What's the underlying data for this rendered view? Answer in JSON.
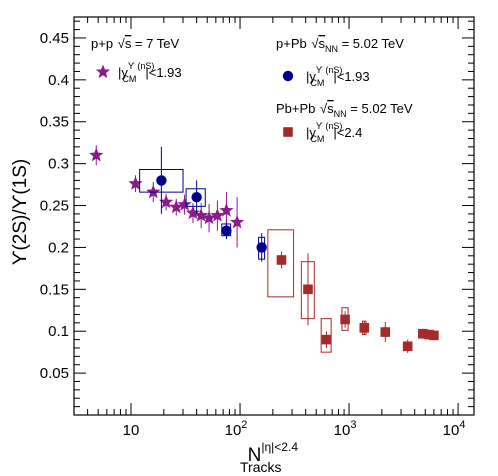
{
  "chart_data": {
    "type": "scatter",
    "x_scale": "log",
    "xlim": [
      3,
      14000
    ],
    "ylim": [
      0,
      0.475
    ],
    "grid": false,
    "legend_placement": "top",
    "x_ticks": [
      {
        "v": 10,
        "base": "10",
        "exp": ""
      },
      {
        "v": 100,
        "base": "10",
        "exp": "2"
      },
      {
        "v": 1000,
        "base": "10",
        "exp": "3"
      },
      {
        "v": 10000,
        "base": "10",
        "exp": "4"
      }
    ],
    "y_ticks": [
      "0.05",
      "0.1",
      "0.15",
      "0.2",
      "0.25",
      "0.3",
      "0.35",
      "0.4",
      "0.45"
    ],
    "xlabel": {
      "main": "N",
      "sup": "|η|<2.4",
      "sub": "Tracks"
    },
    "ylabel": "ϒ(2S)/ϒ(1S)",
    "series": [
      {
        "name": "|y^ϒ(nS)_CM|<1.93",
        "system": "p+p √s = 7 TeV",
        "marker": "star",
        "color": "#8b1a8b",
        "points": [
          {
            "x": 4.8,
            "y": 0.31,
            "err": 0.012
          },
          {
            "x": 11,
            "y": 0.276,
            "err": 0.01
          },
          {
            "x": 16,
            "y": 0.266,
            "err": 0.012
          },
          {
            "x": 21,
            "y": 0.254,
            "err": 0.01
          },
          {
            "x": 26,
            "y": 0.248,
            "err": 0.01
          },
          {
            "x": 31,
            "y": 0.251,
            "err": 0.012
          },
          {
            "x": 37,
            "y": 0.241,
            "err": 0.012
          },
          {
            "x": 44,
            "y": 0.238,
            "err": 0.015
          },
          {
            "x": 52,
            "y": 0.235,
            "err": 0.017
          },
          {
            "x": 62,
            "y": 0.238,
            "err": 0.018
          },
          {
            "x": 75,
            "y": 0.244,
            "err": 0.022
          },
          {
            "x": 94,
            "y": 0.23,
            "err": 0.03
          }
        ]
      },
      {
        "name": "|y^ϒ(nS)_CM|<1.93",
        "system": "p+Pb √s_NN = 5.02 TeV",
        "marker": "circle",
        "color": "#00008b",
        "points": [
          {
            "x": 19,
            "y": 0.28,
            "err": 0.04,
            "sx0": 12,
            "sx1": 30,
            "sy0": 0.266,
            "sy1": 0.293
          },
          {
            "x": 40,
            "y": 0.26,
            "err": 0.02,
            "sx0": 32,
            "sx1": 48,
            "sy0": 0.249,
            "sy1": 0.27
          },
          {
            "x": 75,
            "y": 0.22,
            "err": 0.01,
            "sx0": 68,
            "sx1": 82,
            "sy0": 0.214,
            "sy1": 0.228
          },
          {
            "x": 158,
            "y": 0.2,
            "err": 0.017,
            "sx0": 148,
            "sx1": 168,
            "sy0": 0.186,
            "sy1": 0.212
          }
        ]
      },
      {
        "name": "|y^ϒ(nS)_CM|<2.4",
        "system": "Pb+Pb √s_NN = 5.02 TeV",
        "marker": "square",
        "color": "#a52a2a",
        "points": [
          {
            "x": 240,
            "y": 0.185,
            "err": 0.01,
            "sx0": 180,
            "sx1": 310,
            "sy0": 0.141,
            "sy1": 0.221
          },
          {
            "x": 420,
            "y": 0.15,
            "err": 0.043,
            "sx0": 365,
            "sx1": 480,
            "sy0": 0.115,
            "sy1": 0.183
          },
          {
            "x": 620,
            "y": 0.09,
            "err": 0.01,
            "sx0": 555,
            "sx1": 685,
            "sy0": 0.075,
            "sy1": 0.115
          },
          {
            "x": 920,
            "y": 0.114,
            "err": 0.01,
            "sx0": 860,
            "sx1": 980,
            "sy0": 0.101,
            "sy1": 0.128
          },
          {
            "x": 1380,
            "y": 0.104,
            "err": 0.008,
            "sx0": 1330,
            "sx1": 1430,
            "sy0": 0.096,
            "sy1": 0.112
          },
          {
            "x": 2150,
            "y": 0.099,
            "err": 0.012,
            "sx0": 2090,
            "sx1": 2210,
            "sy0": 0.094,
            "sy1": 0.104
          },
          {
            "x": 3450,
            "y": 0.082,
            "err": 0.008,
            "sx0": 3400,
            "sx1": 3500,
            "sy0": 0.078,
            "sy1": 0.086
          },
          {
            "x": 4750,
            "y": 0.097,
            "err": 0.006,
            "sx0": 4680,
            "sx1": 4820,
            "sy0": 0.094,
            "sy1": 0.1
          },
          {
            "x": 5400,
            "y": 0.096,
            "err": 0.005,
            "sx0": 5330,
            "sx1": 5470,
            "sy0": 0.093,
            "sy1": 0.099
          },
          {
            "x": 6000,
            "y": 0.095,
            "err": 0.005,
            "sx0": 5930,
            "sx1": 6070,
            "sy0": 0.092,
            "sy1": 0.098
          }
        ]
      }
    ],
    "legend": {
      "pp": {
        "label1": "p+p ",
        "label2": "s",
        "label3": " = 7 TeV",
        "sym": "|y",
        "sup": "ϒ (nS)",
        "sub": "CM",
        "cut": "|<1.93"
      },
      "ppb": {
        "label1": "p+Pb ",
        "label2": "s",
        "label2sub": "NN",
        "label3": " = 5.02 TeV",
        "sym": "|y",
        "sup": "ϒ (nS)",
        "sub": "CM",
        "cut": "|<1.93"
      },
      "pbpb": {
        "label1": "Pb+Pb ",
        "label2": "s",
        "label2sub": "NN",
        "label3": " = 5.02 TeV",
        "sym": "|y",
        "sup": "ϒ (nS)",
        "sub": "CM",
        "cut": "|<2.4"
      }
    }
  }
}
